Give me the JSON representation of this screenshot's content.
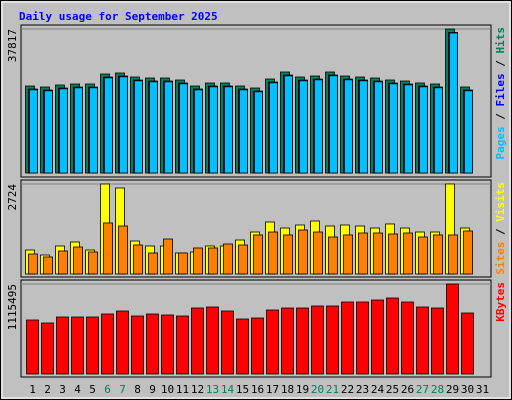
{
  "chart_data": [
    {
      "type": "bar",
      "title": "Daily usage for September 2025",
      "legend_separator": " / ",
      "ylim": [
        0,
        37817
      ],
      "yticks": [
        37817
      ],
      "series": [
        {
          "name": "Hits",
          "color": "#00805c",
          "values": [
            22846,
            22584,
            23109,
            23371,
            23371,
            25997,
            26260,
            25210,
            24947,
            24947,
            24422,
            22846,
            23634,
            23634,
            22846,
            22321,
            24684,
            26523,
            25210,
            25472,
            26523,
            25472,
            25210,
            24947,
            24422,
            24159,
            23634,
            23371,
            37817,
            22584,
            null
          ]
        },
        {
          "name": "Files",
          "color": "#0000ff",
          "values": [
            22046,
            21784,
            22309,
            22571,
            22571,
            25197,
            25460,
            24410,
            24147,
            24147,
            23622,
            22046,
            22834,
            22834,
            22046,
            21521,
            23884,
            25723,
            24410,
            24672,
            25723,
            24672,
            24410,
            24147,
            23622,
            23359,
            22834,
            22571,
            36900,
            21784,
            null
          ]
        },
        {
          "name": "Pages",
          "color": "#00c0ff",
          "values": [
            21846,
            21584,
            22109,
            22371,
            22371,
            24997,
            25260,
            24210,
            23947,
            23947,
            23422,
            21846,
            22634,
            22634,
            21846,
            21321,
            23684,
            25523,
            24210,
            24472,
            25523,
            24472,
            24210,
            23947,
            23422,
            23159,
            22634,
            22371,
            36765,
            21584,
            null
          ]
        }
      ]
    },
    {
      "type": "bar",
      "ylim": [
        0,
        2724
      ],
      "yticks": [
        2724
      ],
      "series": [
        {
          "name": "Visits",
          "color": "#ffff00",
          "values": [
            726,
            575,
            848,
            969,
            726,
            2724,
            2603,
            999,
            848,
            848,
            636,
            666,
            848,
            848,
            1029,
            1271,
            1574,
            1392,
            1483,
            1604,
            1453,
            1483,
            1453,
            1392,
            1514,
            1392,
            1271,
            1271,
            2724,
            1392,
            null
          ]
        },
        {
          "name": "Sites",
          "color": "#ff8000",
          "values": [
            605,
            515,
            696,
            817,
            666,
            1544,
            1453,
            878,
            636,
            1059,
            636,
            787,
            787,
            908,
            878,
            1181,
            1271,
            1181,
            1332,
            1271,
            1120,
            1181,
            1241,
            1241,
            1211,
            1241,
            1120,
            1181,
            1181,
            1302,
            null
          ]
        }
      ]
    },
    {
      "type": "bar",
      "ylim": [
        0,
        1115495
      ],
      "yticks": [
        1115495
      ],
      "categories": [
        "1",
        "2",
        "3",
        "4",
        "5",
        "6",
        "7",
        "8",
        "9",
        "10",
        "11",
        "12",
        "13",
        "14",
        "15",
        "16",
        "17",
        "18",
        "19",
        "20",
        "21",
        "22",
        "23",
        "24",
        "25",
        "26",
        "27",
        "28",
        "29",
        "30",
        "31"
      ],
      "category_colors": [
        "#000000",
        "#000000",
        "#000000",
        "#000000",
        "#000000",
        "#00805c",
        "#00805c",
        "#000000",
        "#000000",
        "#000000",
        "#000000",
        "#000000",
        "#00805c",
        "#00805c",
        "#000000",
        "#000000",
        "#000000",
        "#000000",
        "#000000",
        "#00805c",
        "#00805c",
        "#000000",
        "#000000",
        "#000000",
        "#000000",
        "#000000",
        "#00805c",
        "#00805c",
        "#000000",
        "#000000",
        "#000000"
      ],
      "series": [
        {
          "name": "KBytes",
          "color": "#ff0000",
          "values": [
            669276,
            632094,
            706458,
            706458,
            706458,
            743640,
            780822,
            718852,
            743640,
            731246,
            718852,
            818004,
            830398,
            780822,
            681670,
            694064,
            793216,
            818004,
            818004,
            842792,
            842792,
            892368,
            892368,
            917156,
            941944,
            892368,
            830398,
            818004,
            1115495,
            756034,
            null
          ]
        }
      ]
    }
  ]
}
